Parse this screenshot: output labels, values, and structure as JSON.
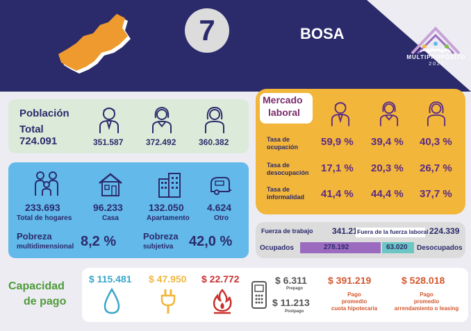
{
  "header": {
    "number": "7",
    "locality": "BOSA",
    "logo": {
      "line1": "ENCUESTA",
      "line2": "MULTIPROPÓSITO",
      "line3": "2021"
    }
  },
  "poblacion": {
    "title": "Población",
    "total_label": "Total",
    "total": "724.091",
    "men": "351.587",
    "women": "372.492",
    "other": "360.382"
  },
  "hogares": {
    "total": "233.693",
    "total_label": "Total de hogares",
    "casa": "96.233",
    "casa_label": "Casa",
    "apartamento": "132.050",
    "apartamento_label": "Apartamento",
    "otro": "4.624",
    "otro_label": "Otro",
    "pobreza_multi_label1": "Pobreza",
    "pobreza_multi_label2": "multidimensional",
    "pobreza_multi": "8,2 %",
    "pobreza_subj_label1": "Pobreza",
    "pobreza_subj_label2": "subjetiva",
    "pobreza_subj": "42,0 %"
  },
  "mercado": {
    "title1": "Mercado",
    "title2": "laboral",
    "rows": [
      {
        "label1": "Tasa de",
        "label2": "ocupación",
        "values": [
          "59,9 %",
          "39,4 %",
          "40,3 %"
        ]
      },
      {
        "label1": "Tasa de",
        "label2": "desocupación",
        "values": [
          "17,1 %",
          "20,3 %",
          "26,7 %"
        ]
      },
      {
        "label1": "Tasa de",
        "label2": "informalidad",
        "values": [
          "41,4 %",
          "44,4 %",
          "37,7 %"
        ]
      }
    ]
  },
  "fuerza": {
    "trabajo_label": "Fuerza de trabajo",
    "trabajo": "341.212",
    "fuera_label": "Fuera de la fuerza laboral",
    "fuera": "224.339",
    "ocupados_label": "Ocupados",
    "ocupados": "278.192",
    "desocupados_label": "Desocupados",
    "desocupados": "63.020"
  },
  "capacidad": {
    "title1": "Capacidad",
    "title2": "de pago",
    "agua": "$ 115.481",
    "energia": "$ 47.950",
    "gas": "$ 22.772",
    "prepago": "$ 6.311",
    "prepago_label": "Prepago",
    "postpago": "$ 11.213",
    "postpago_label": "Postpago",
    "hipoteca": "$ 391.219",
    "hipoteca_label1": "Pago",
    "hipoteca_label2": "promedio",
    "hipoteca_label3": "cuota hipotecaria",
    "arriendo": "$ 528.018",
    "arriendo_label1": "Pago",
    "arriendo_label2": "promedio",
    "arriendo_label3": "arrendamiento o leasing"
  },
  "colors": {
    "navy": "#2b2a6b",
    "purple": "#5b2a86",
    "orange_box": "#f2b63a",
    "blue_box": "#62b9ea",
    "green_box": "#dcebd9",
    "agua": "#3aa6c9",
    "energia": "#f2b63a",
    "gas": "#c8302e",
    "pago": "#d2582f",
    "capacidad_title": "#4f9a3a"
  }
}
